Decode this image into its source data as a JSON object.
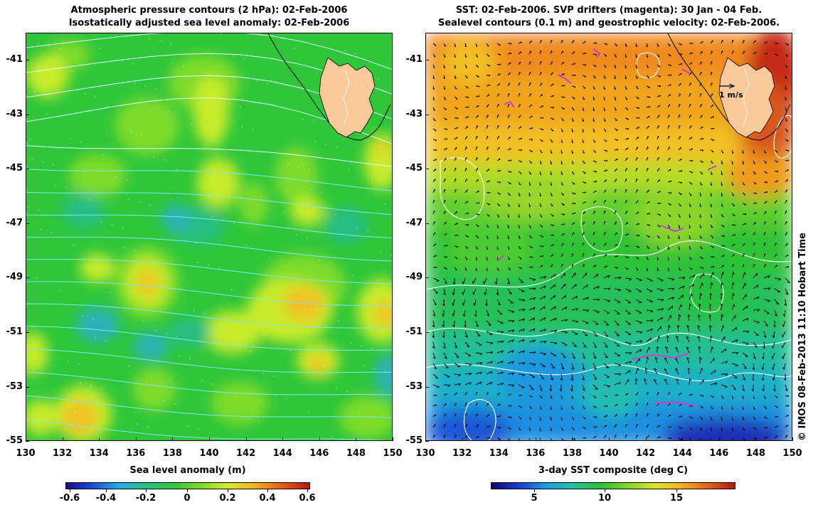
{
  "left_map": {
    "title_line1": "Atmospheric pressure contours (2 hPa): 02-Feb-2006",
    "title_line2": "Isostatically adjusted sea level anomaly: 02-Feb-2006",
    "colorbar": {
      "label": "Sea level anomaly (m)",
      "ticks": [
        "-0.6",
        "-0.4",
        "-0.2",
        "0",
        "0.2",
        "0.4",
        "0.6"
      ],
      "colors": [
        "#1a0a8c",
        "#1a4fd6",
        "#21b1ea",
        "#27c27a",
        "#31c83a",
        "#7bdc2b",
        "#d8ee2a",
        "#f5b020",
        "#e85a14",
        "#b21a0c"
      ]
    },
    "field_colors": {
      "base": "#2fc63a",
      "high": "#7fdc2a",
      "higher": "#c8ec2a",
      "peak": "#f0c226",
      "low": "#25be84",
      "lower": "#2cb2b8",
      "contour": "#7fe6f2",
      "contour_north": "#dff7ff"
    }
  },
  "right_map": {
    "title_line1": "SST: 02-Feb-2006. SVP drifters (magenta): 30 Jan - 04 Feb.",
    "title_line2": "Sealevel contours (0.1 m) and geostrophic velocity: 02-Feb-2006.",
    "colorbar": {
      "label": "3-day SST composite (deg C)",
      "ticks": [
        "5",
        "10",
        "15"
      ],
      "colors": [
        "#0c0a6e",
        "#1d3ad2",
        "#1c9ae6",
        "#22c3a0",
        "#28c236",
        "#7ad62a",
        "#d6e626",
        "#f6b21e",
        "#e4621a",
        "#b2180e"
      ]
    },
    "scale_arrow_label": "1 m/s",
    "drifter_color": "#d23ad6",
    "land_color": "#f9c99a"
  },
  "axes": {
    "y_ticks": [
      "-41",
      "-43",
      "-45",
      "-47",
      "-49",
      "-51",
      "-53",
      "-55"
    ],
    "x_ticks": [
      "130",
      "132",
      "134",
      "136",
      "138",
      "140",
      "142",
      "144",
      "146",
      "148",
      "150"
    ]
  },
  "credit": "© IMOS 08-Feb-2013 11:10 Hobart Time"
}
